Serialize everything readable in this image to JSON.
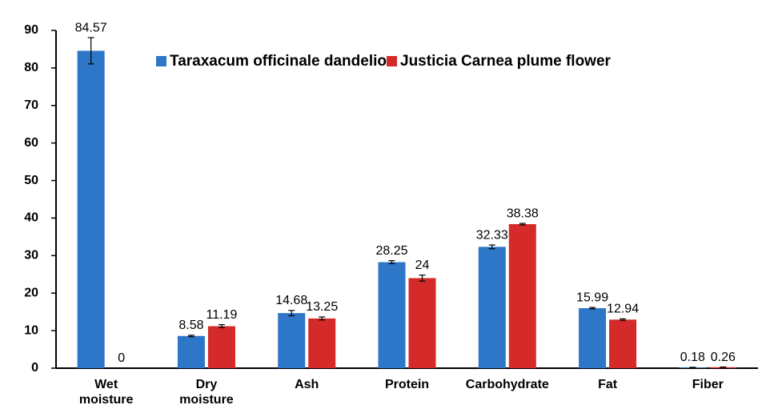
{
  "chart_data": {
    "type": "bar",
    "categories": [
      "Wet moisture",
      "Dry moisture",
      "Ash",
      "Protein",
      "Carbohydrate",
      "Fat",
      "Fiber"
    ],
    "series": [
      {
        "name": "Taraxacum officinale dandelion",
        "color": "#2e76c8",
        "values": [
          84.57,
          8.58,
          14.68,
          28.25,
          32.33,
          15.99,
          0.18
        ],
        "errors": [
          3.5,
          0.2,
          0.7,
          0.4,
          0.5,
          0.2,
          0.05
        ]
      },
      {
        "name": "Justicia Carnea plume flower",
        "color": "#d42a2a",
        "values": [
          0,
          11.19,
          13.25,
          24,
          38.38,
          12.94,
          0.26
        ],
        "errors": [
          0,
          0.4,
          0.4,
          0.8,
          0.2,
          0.2,
          0.05
        ]
      }
    ],
    "ylim": [
      0,
      90
    ],
    "yticks": [
      0,
      10,
      20,
      30,
      40,
      50,
      60,
      70,
      80,
      90
    ],
    "legend": "top",
    "grid": false
  }
}
